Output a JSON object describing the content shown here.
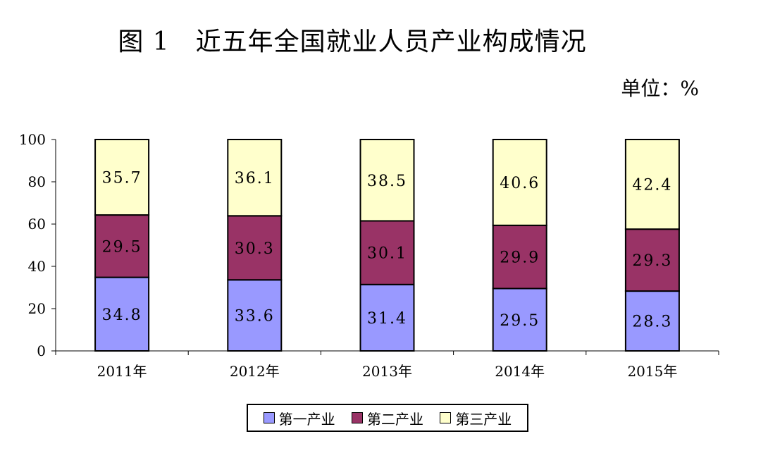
{
  "chart_data": {
    "type": "bar",
    "stacked": true,
    "title": "图 1　近五年全国就业人员产业构成情况",
    "unit": "单位：%",
    "categories": [
      "2011年",
      "2012年",
      "2013年",
      "2014年",
      "2015年"
    ],
    "series": [
      {
        "name": "第一产业",
        "values": [
          34.8,
          33.6,
          31.4,
          29.5,
          28.3
        ],
        "color": "#9999ff",
        "labels": [
          "34.8",
          "33.6",
          "31.4",
          "29.5",
          "28.3"
        ]
      },
      {
        "name": "第二产业",
        "values": [
          29.5,
          30.3,
          30.1,
          29.9,
          29.3
        ],
        "color": "#993366",
        "labels": [
          "29.5",
          "30.3",
          "30.1",
          "29.9",
          "29.3"
        ]
      },
      {
        "name": "第三产业",
        "values": [
          35.7,
          36.1,
          38.5,
          40.6,
          42.4
        ],
        "color": "#ffffcc",
        "labels": [
          "35.7",
          "36.1",
          "38.5",
          "40.6",
          "42.4"
        ]
      }
    ],
    "ylim": [
      0,
      100
    ],
    "yticks": [
      0,
      20,
      40,
      60,
      80,
      100
    ],
    "legend_position": "bottom",
    "grid": false
  }
}
